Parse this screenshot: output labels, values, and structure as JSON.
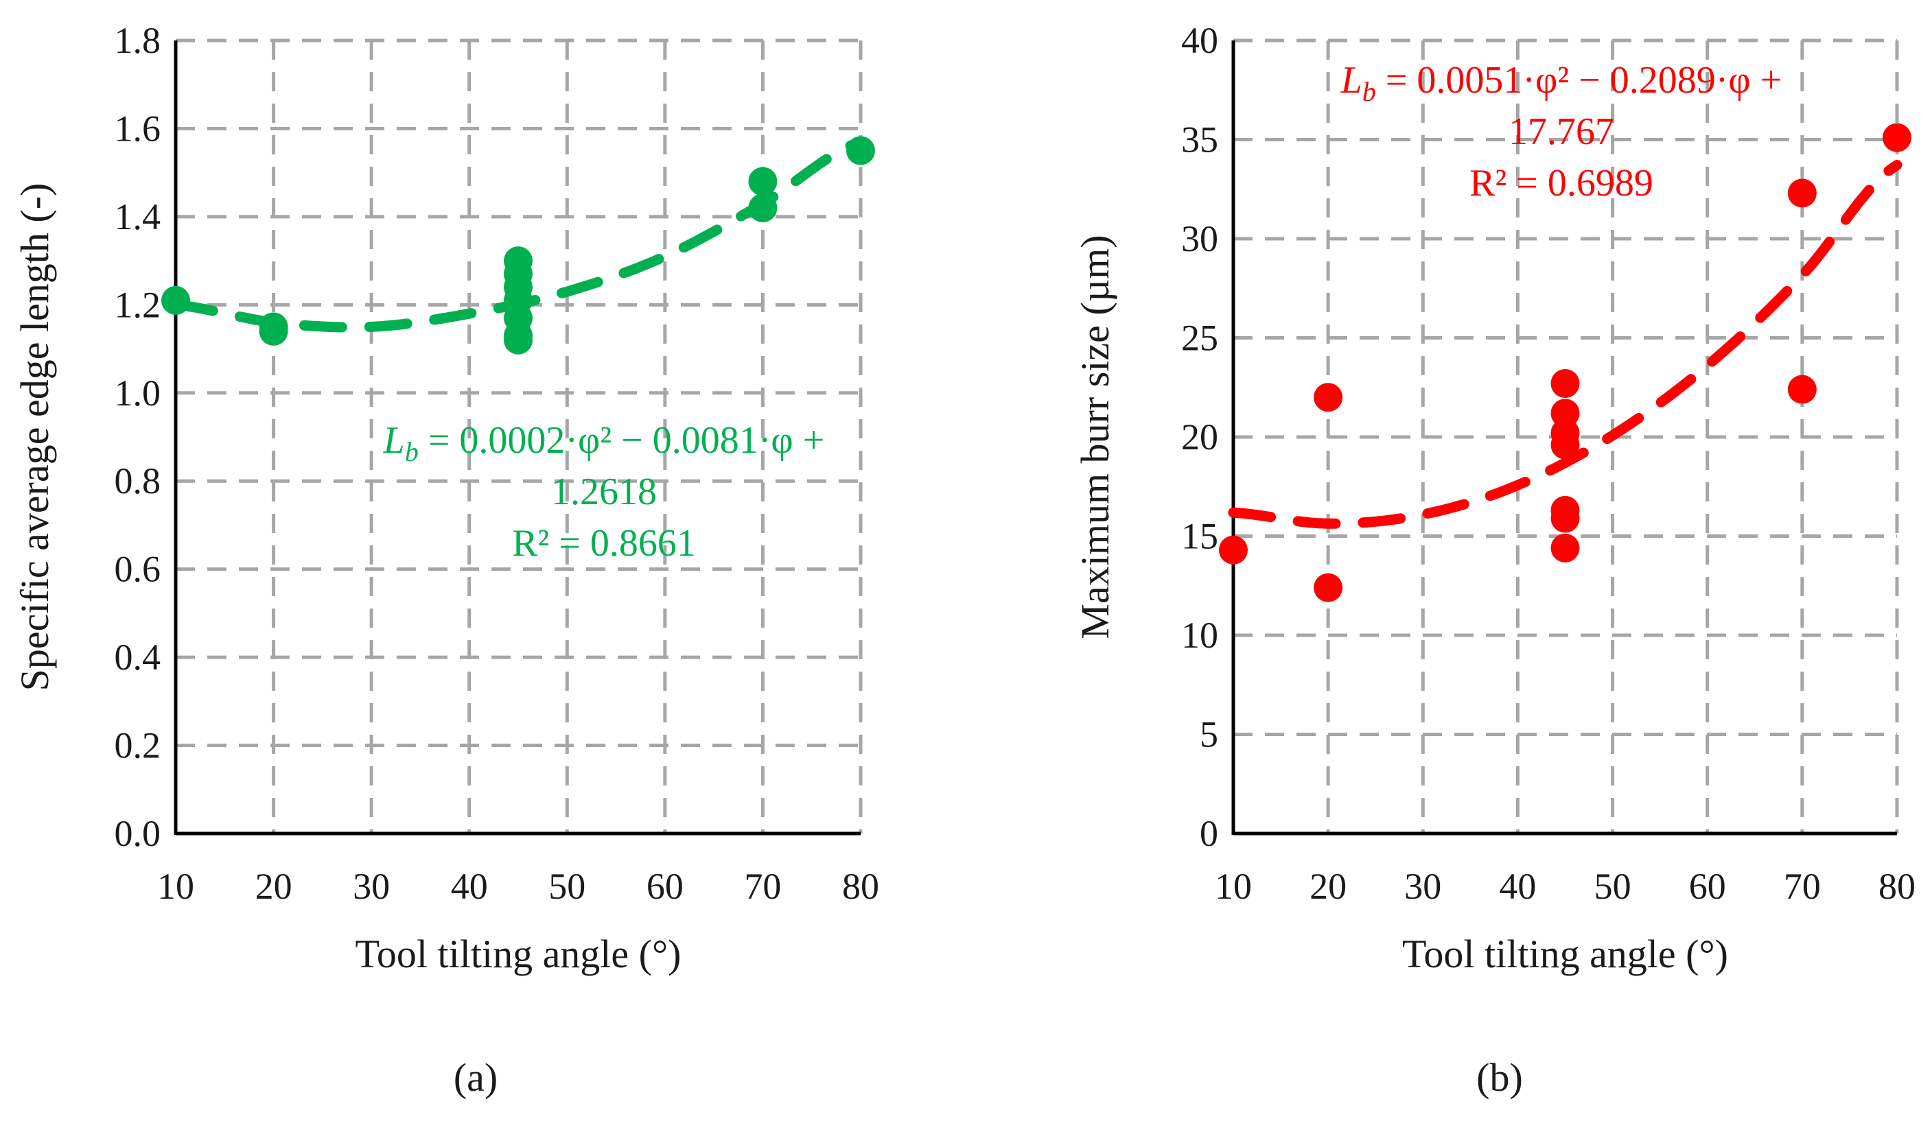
{
  "chart_data": [
    {
      "type": "scatter",
      "panel_label": "(a)",
      "xlabel": "Tool tilting angle (°)",
      "ylabel": "Specific average edge length (-)",
      "xlim": [
        10,
        80
      ],
      "ylim": [
        0,
        1.8
      ],
      "xticks": [
        "10",
        "20",
        "30",
        "40",
        "50",
        "60",
        "70",
        "80"
      ],
      "yticks": [
        "0.0",
        "0.2",
        "0.4",
        "0.6",
        "0.8",
        "1.0",
        "1.2",
        "1.4",
        "1.6",
        "1.8"
      ],
      "grid": true,
      "color": "#00b050",
      "points": [
        [
          10,
          1.21
        ],
        [
          20,
          1.15
        ],
        [
          20,
          1.14
        ],
        [
          45,
          1.3
        ],
        [
          45,
          1.27
        ],
        [
          45,
          1.24
        ],
        [
          45,
          1.21
        ],
        [
          45,
          1.17
        ],
        [
          45,
          1.13
        ],
        [
          45,
          1.12
        ],
        [
          70,
          1.48
        ],
        [
          70,
          1.42
        ],
        [
          80,
          1.55
        ]
      ],
      "trendline": {
        "type": "polynomial-2",
        "points": [
          [
            10,
            1.2
          ],
          [
            20,
            1.16
          ],
          [
            30,
            1.15
          ],
          [
            40,
            1.18
          ],
          [
            50,
            1.23
          ],
          [
            60,
            1.31
          ],
          [
            70,
            1.43
          ],
          [
            80,
            1.57
          ]
        ],
        "equation_line1_var": "L",
        "equation_line1_sub": "b",
        "equation_line1_rest": " = 0.0002·φ² − 0.0081·φ +",
        "equation_line2": "1.2618",
        "r2": "R² = 0.8661"
      }
    },
    {
      "type": "scatter",
      "panel_label": "(b)",
      "xlabel": "Tool tilting angle (°)",
      "ylabel": "Maximum burr size (µm)",
      "xlim": [
        10,
        80
      ],
      "ylim": [
        0,
        40
      ],
      "xticks": [
        "10",
        "20",
        "30",
        "40",
        "50",
        "60",
        "70",
        "80"
      ],
      "yticks": [
        "0",
        "5",
        "10",
        "15",
        "20",
        "25",
        "30",
        "35",
        "40"
      ],
      "grid": true,
      "color": "#ff0000",
      "points": [
        [
          10,
          14.3
        ],
        [
          20,
          22.0
        ],
        [
          20,
          12.4
        ],
        [
          45,
          22.7
        ],
        [
          45,
          21.2
        ],
        [
          45,
          20.2
        ],
        [
          45,
          19.6
        ],
        [
          45,
          16.3
        ],
        [
          45,
          15.9
        ],
        [
          45,
          14.4
        ],
        [
          70,
          32.3
        ],
        [
          70,
          22.4
        ],
        [
          80,
          35.1
        ]
      ],
      "trendline": {
        "type": "polynomial-2",
        "points": [
          [
            10,
            16.19
          ],
          [
            20,
            15.63
          ],
          [
            30,
            16.09
          ],
          [
            40,
            17.57
          ],
          [
            50,
            20.08
          ],
          [
            60,
            23.6
          ],
          [
            70,
            28.15
          ],
          [
            80,
            33.72
          ]
        ],
        "equation_line1_var": "L",
        "equation_line1_sub": "b",
        "equation_line1_rest": " = 0.0051·φ² − 0.2089·φ +",
        "equation_line2": "17.767",
        "r2": "R² = 0.6989"
      }
    }
  ]
}
